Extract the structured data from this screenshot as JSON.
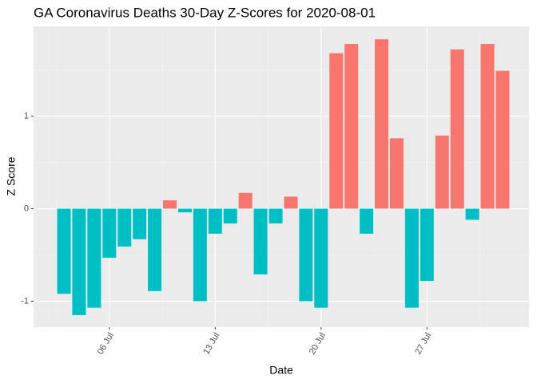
{
  "chart_data": {
    "type": "bar",
    "title": "GA Coronavirus Deaths 30-Day Z-Scores for 2020-08-01",
    "x_label": "Date",
    "y_label": "Z Score",
    "x": [
      "07-03",
      "07-04",
      "07-05",
      "07-06",
      "07-07",
      "07-08",
      "07-09",
      "07-10",
      "07-11",
      "07-12",
      "07-13",
      "07-14",
      "07-15",
      "07-16",
      "07-17",
      "07-18",
      "07-19",
      "07-20",
      "07-21",
      "07-22",
      "07-23",
      "07-24",
      "07-25",
      "07-26",
      "07-27",
      "07-28",
      "07-29",
      "07-30",
      "07-31",
      "08-01"
    ],
    "values": [
      -0.92,
      -1.15,
      -1.07,
      -0.53,
      -0.41,
      -0.33,
      -0.89,
      0.09,
      -0.04,
      -1.0,
      -0.27,
      -0.16,
      0.17,
      -0.71,
      -0.16,
      0.13,
      -1.0,
      -1.07,
      1.68,
      1.78,
      -0.27,
      1.83,
      0.76,
      -1.07,
      -0.78,
      0.79,
      1.72,
      -0.12,
      1.78,
      1.49
    ],
    "positive_color": "#F8766D",
    "negative_color": "#00BFC4",
    "ylim": [
      -1.28,
      1.97
    ],
    "yticks": [
      -1,
      0,
      1
    ],
    "xticks": [
      {
        "value": "07-06",
        "label": "06 Jul"
      },
      {
        "value": "07-13",
        "label": "13 Jul"
      },
      {
        "value": "07-20",
        "label": "20 Jul"
      },
      {
        "value": "07-27",
        "label": "27 Jul"
      }
    ],
    "grid": true
  }
}
